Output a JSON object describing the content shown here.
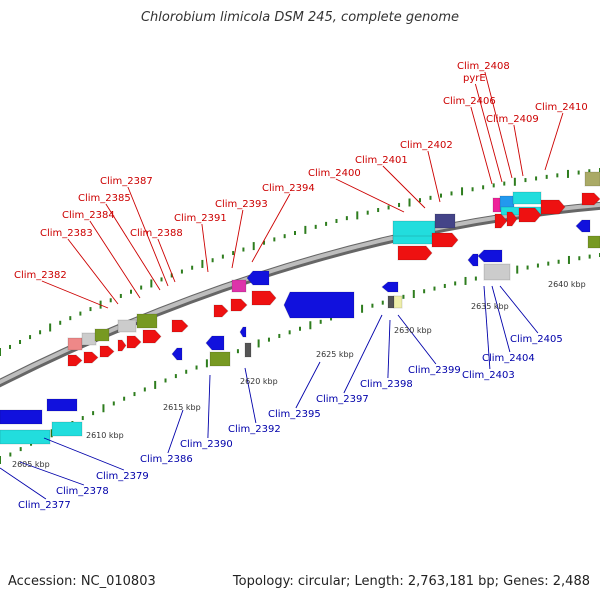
{
  "title": "Chlorobium limicola DSM 245, complete genome",
  "footer": {
    "accession": "Accession: NC_010803",
    "summary": "Topology: circular; Length: 2,763,181 bp; Genes: 2,488"
  },
  "colors": {
    "forward_label": "#cc0000",
    "reverse_label": "#0000aa",
    "backbone": "#888888",
    "tick": "#2e7d1e"
  },
  "scale_ticks": [
    "2605 kbp",
    "2610 kbp",
    "2615 kbp",
    "2620 kbp",
    "2625 kbp",
    "2630 kbp",
    "2635 kbp",
    "2640 kbp"
  ],
  "forward_genes": [
    "Clim_2382",
    "Clim_2383",
    "Clim_2384",
    "Clim_2385",
    "Clim_2387",
    "Clim_2388",
    "Clim_2391",
    "Clim_2393",
    "Clim_2394",
    "Clim_2400",
    "Clim_2401",
    "Clim_2402",
    "Clim_2406",
    "pyrE",
    "Clim_2408",
    "Clim_2409",
    "Clim_2410"
  ],
  "reverse_genes": [
    "Clim_2377",
    "Clim_2378",
    "Clim_2379",
    "Clim_2386",
    "Clim_2390",
    "Clim_2392",
    "Clim_2395",
    "Clim_2397",
    "Clim_2398",
    "Clim_2399",
    "Clim_2403",
    "Clim_2404",
    "Clim_2405"
  ]
}
